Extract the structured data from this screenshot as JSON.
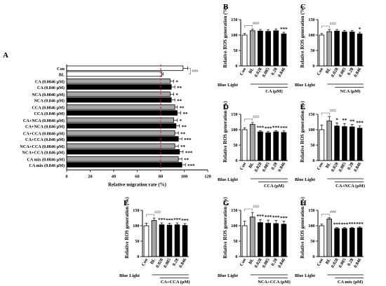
{
  "colors": {
    "black": "#000000",
    "gray": "#a6a6a6",
    "white": "#ffffff",
    "ref_line": "#e31a1c",
    "hash": "#7a7a7a"
  },
  "chart_data": [
    {
      "panel": "A",
      "type": "bar",
      "orientation": "horizontal",
      "xlabel": "Relative migration rate (%)",
      "xlim": [
        0,
        120
      ],
      "xticks": [
        0,
        20,
        40,
        60,
        80,
        100,
        120
      ],
      "reference_line": 80,
      "categories": [
        "Con",
        "BL",
        "CA (0.0846 μM)",
        "CA (0.846 μM)",
        "NCA (0.0846 μM)",
        "NCA (0.846 μM)",
        "CCA (0.0846 μM)",
        "CCA (0.846 μM)",
        "CA+NCA (0.0846 μM)",
        "CA+NCA (0.846 μM)",
        "CA+CCA (0.0846 μM)",
        "CA+CCA (0.846 μM)",
        "NCA+CCA (0.0846 μM)",
        "NCA+CCA (0.846 μM)",
        "CA mix (0.0846 μM)",
        "CA mix (0.846 μM)"
      ],
      "values": [
        99,
        81,
        88,
        89,
        88,
        89,
        92,
        94,
        91,
        93,
        92,
        95,
        92,
        96,
        95,
        98
      ],
      "errors": [
        4,
        1,
        3,
        3,
        3,
        3,
        2,
        3,
        3,
        3,
        3,
        3,
        3,
        3,
        3,
        3
      ],
      "bar_colors": [
        "white",
        "white",
        "gray",
        "black",
        "gray",
        "black",
        "gray",
        "black",
        "gray",
        "black",
        "gray",
        "black",
        "gray",
        "black",
        "gray",
        "black"
      ],
      "significance": [
        "",
        "###",
        "*",
        "**",
        "*",
        "**",
        "**",
        "**",
        "*",
        "**",
        "**",
        "***",
        "**",
        "***",
        "**",
        "***"
      ]
    },
    {
      "panel": "B",
      "type": "bar",
      "ylabel": "Relative ROS generation (%)",
      "ylim": [
        0,
        150
      ],
      "yticks": [
        0,
        50,
        100,
        150
      ],
      "categories": [
        "Con",
        "BL",
        "0.028",
        "0.085",
        "0.28",
        "0.846"
      ],
      "values": [
        100,
        114,
        113,
        112,
        114,
        104
      ],
      "errors": [
        5,
        5,
        5,
        5,
        6,
        5
      ],
      "bar_colors": [
        "white",
        "gray",
        "black",
        "black",
        "black",
        "black"
      ],
      "significance": [
        "",
        "###",
        "",
        "",
        "",
        "***"
      ],
      "group_labels": [
        "Blue Light",
        "CA (μM)"
      ]
    },
    {
      "panel": "C",
      "type": "bar",
      "ylabel": "Relative ROS generation (%)",
      "ylim": [
        0,
        150
      ],
      "yticks": [
        0,
        50,
        100,
        150
      ],
      "categories": [
        "Con",
        "BL",
        "0.028",
        "0.085",
        "0.28",
        "0.846"
      ],
      "values": [
        100,
        111,
        113,
        110,
        110,
        104
      ],
      "errors": [
        5,
        7,
        5,
        5,
        5,
        5
      ],
      "bar_colors": [
        "white",
        "gray",
        "black",
        "black",
        "black",
        "black"
      ],
      "significance": [
        "",
        "###",
        "",
        "",
        "",
        "*"
      ],
      "group_labels": [
        "Blue Light",
        "NCA (μM)"
      ]
    },
    {
      "panel": "D",
      "type": "bar",
      "ylabel": "Relative ROS generation (%)",
      "ylim": [
        0,
        150
      ],
      "yticks": [
        0,
        50,
        100,
        150
      ],
      "categories": [
        "Con",
        "BL",
        "0.028",
        "0.085",
        "0.28",
        "0.846"
      ],
      "values": [
        100,
        117,
        93,
        90,
        93,
        91
      ],
      "errors": [
        6,
        6,
        4,
        4,
        4,
        5
      ],
      "bar_colors": [
        "white",
        "gray",
        "black",
        "black",
        "black",
        "black"
      ],
      "significance": [
        "",
        "###",
        "***",
        "***",
        "***",
        "***"
      ],
      "group_labels": [
        "Blue Light",
        "CCA (μM)"
      ]
    },
    {
      "panel": "E",
      "type": "bar",
      "ylabel": "Relative ROS generation (%)",
      "ylim": [
        0,
        150
      ],
      "yticks": [
        0,
        50,
        100,
        150
      ],
      "categories": [
        "Con",
        "BL",
        "0.028",
        "0.085",
        "0.28",
        "0.846"
      ],
      "values": [
        100,
        128,
        112,
        110,
        109,
        105
      ],
      "errors": [
        15,
        15,
        10,
        10,
        8,
        7
      ],
      "bar_colors": [
        "white",
        "gray",
        "black",
        "black",
        "black",
        "black"
      ],
      "significance": [
        "",
        "###",
        "*",
        "**",
        "**",
        "***"
      ],
      "group_labels": [
        "Blue Light",
        "CA+NCA (μM)"
      ]
    },
    {
      "panel": "F",
      "type": "bar",
      "ylabel": "Relative ROS generation (%)",
      "ylim": [
        0,
        150
      ],
      "yticks": [
        0,
        50,
        100,
        150
      ],
      "categories": [
        "Con",
        "BL",
        "0.028",
        "0.085",
        "0.28",
        "0.846"
      ],
      "values": [
        100,
        117,
        103,
        102,
        103,
        101
      ],
      "errors": [
        8,
        8,
        6,
        6,
        6,
        6
      ],
      "bar_colors": [
        "white",
        "gray",
        "black",
        "black",
        "black",
        "black"
      ],
      "significance": [
        "",
        "###",
        "***",
        "***",
        "***",
        "***"
      ],
      "group_labels": [
        "Blue Light",
        "CA+CCA (μM)"
      ]
    },
    {
      "panel": "G",
      "type": "bar",
      "ylabel": "Relative ROS generation (%)",
      "ylim": [
        0,
        150
      ],
      "yticks": [
        0,
        50,
        100,
        150
      ],
      "categories": [
        "Con",
        "BL",
        "0.028",
        "0.085",
        "0.28",
        "0.846"
      ],
      "values": [
        100,
        128,
        110,
        108,
        107,
        105
      ],
      "errors": [
        15,
        15,
        10,
        10,
        10,
        10
      ],
      "bar_colors": [
        "white",
        "gray",
        "black",
        "black",
        "black",
        "black"
      ],
      "significance": [
        "",
        "###",
        "***",
        "***",
        "***",
        "***"
      ],
      "group_labels": [
        "Blue Light",
        "NCA+CCA (μM)"
      ]
    },
    {
      "panel": "H",
      "type": "bar",
      "ylabel": "Relative ROS generation (%)",
      "ylim": [
        0,
        150
      ],
      "yticks": [
        0,
        50,
        100,
        150
      ],
      "categories": [
        "Con",
        "BL",
        "0.028",
        "0.085",
        "0.28",
        "0.846"
      ],
      "values": [
        100,
        122,
        91,
        91,
        92,
        93
      ],
      "errors": [
        5,
        4,
        3,
        3,
        3,
        3
      ],
      "bar_colors": [
        "white",
        "gray",
        "black",
        "black",
        "black",
        "black"
      ],
      "significance": [
        "",
        "###",
        "***",
        "***",
        "***",
        "***"
      ],
      "group_labels": [
        "Blue Light",
        "CA mix (μM)"
      ]
    }
  ]
}
